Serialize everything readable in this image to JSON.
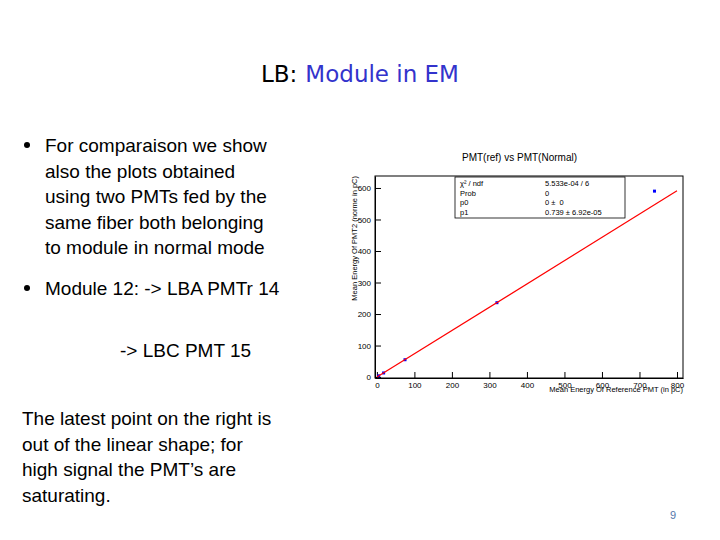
{
  "slide": {
    "title_prefix": "LB:",
    "title": "Module in EM",
    "bullets": [
      [
        "For comparaison we show",
        "also the plots obtained",
        "using two PMTs fed by the",
        "same fiber both belonging",
        "to module in normal mode"
      ],
      [
        "Module 12: -> LBA PMTr 14"
      ]
    ],
    "sub_item": "-> LBC PMT 15",
    "note": [
      "The latest point on the right is",
      "out of the linear shape; for",
      "high signal the PMT’s are",
      "saturating."
    ],
    "page_number": 9
  },
  "chart_data": {
    "type": "scatter",
    "title": "PMT(ref) vs PMT(Normal)",
    "x_label": "Mean Energy Of Reference PMT (in pC)",
    "y_label": "Mean Energy Of PMT2 (norme in pC)",
    "xlim": [
      -5,
      816
    ],
    "ylim": [
      -3,
      638
    ],
    "xticks": [
      0,
      100,
      200,
      300,
      400,
      500,
      600,
      700,
      800
    ],
    "yticks": [
      0,
      100,
      200,
      300,
      400,
      500,
      600
    ],
    "grid": false,
    "series": [
      {
        "type": "scatter",
        "color": "#0000ff",
        "marker": "square",
        "x": [
          5,
          18,
          75,
          320,
          740
        ],
        "values": [
          4,
          13,
          55,
          236,
          590
        ]
      },
      {
        "type": "line",
        "color": "#ff0000",
        "line_style": "solid",
        "x": [
          0,
          800
        ],
        "values": [
          0,
          591
        ]
      }
    ],
    "stats": [
      [
        "χ² / ndf",
        "5.533e-04 / 6"
      ],
      [
        "Prob",
        "0"
      ],
      [
        "p0",
        "0 ±  0"
      ],
      [
        "p1",
        "0.739 ± 6.92e-05"
      ]
    ]
  }
}
